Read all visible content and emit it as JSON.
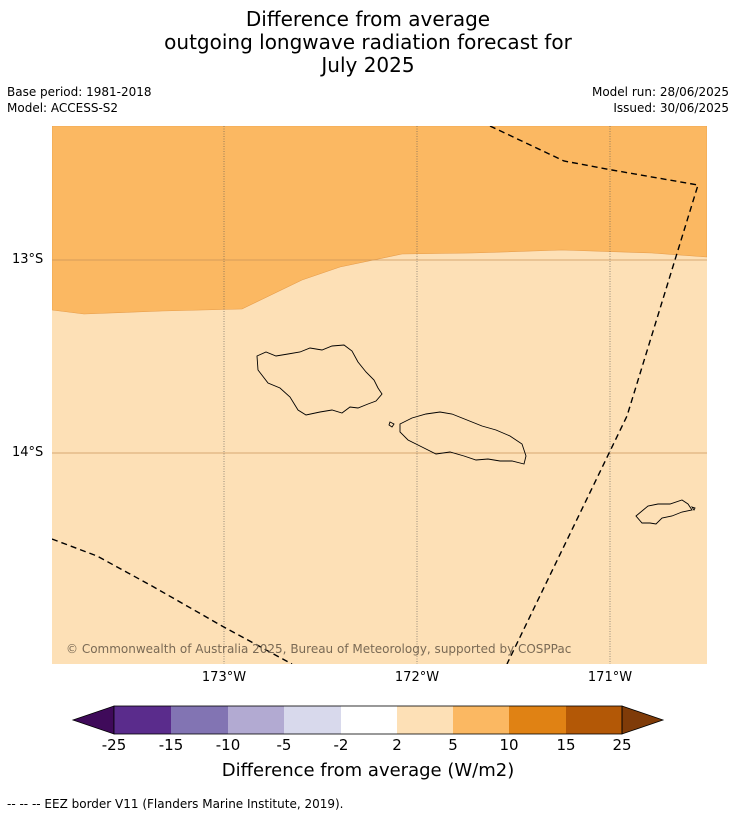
{
  "title": {
    "line1": "Difference from average",
    "line2": "outgoing longwave radiation forecast for",
    "line3": "July 2025"
  },
  "meta": {
    "base_period": "Base period: 1981-2018",
    "model": "Model: ACCESS-S2",
    "model_run": "Model run: 28/06/2025",
    "issued": "Issued: 30/06/2025"
  },
  "map": {
    "lat_labels": [
      "13°S",
      "14°S"
    ],
    "lon_labels": [
      "173°W",
      "172°W",
      "171°W"
    ],
    "copyright": "© Commonwealth of Australia 2025, Bureau of Meteorology, supported by COSPPac",
    "colors": {
      "upper_band": "#fbb862",
      "lower_band": "#fde0b6",
      "grid": "#555555"
    }
  },
  "colorbar": {
    "ticks": [
      "-25",
      "-15",
      "-10",
      "-5",
      "-2",
      "2",
      "5",
      "10",
      "15",
      "25"
    ],
    "colors": [
      "#3f0a5a",
      "#5a2c8c",
      "#8274b3",
      "#b2aad2",
      "#d8d9ec",
      "#ffffff",
      "#fde0b6",
      "#fbb862",
      "#e08214",
      "#b35806",
      "#7f3b08"
    ],
    "label": "Difference from average (W/m2)"
  },
  "footnote": "--  --  -- EEZ border V11 (Flanders Marine Institute, 2019)."
}
